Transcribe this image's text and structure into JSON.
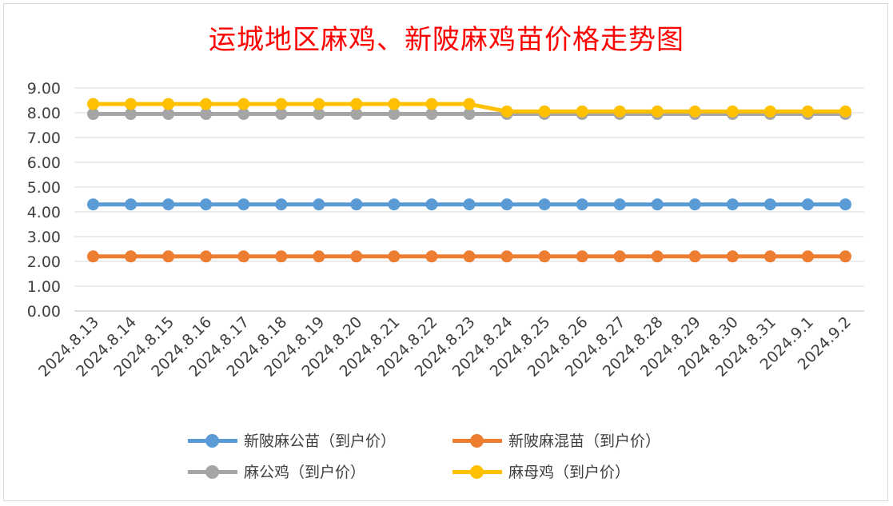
{
  "chart_data": {
    "type": "line",
    "title": "运城地区麻鸡、新陂麻鸡苗价格走势图",
    "categories": [
      "2024.8.13",
      "2024.8.14",
      "2024.8.15",
      "2024.8.16",
      "2024.8.17",
      "2024.8.18",
      "2024.8.19",
      "2024.8.20",
      "2024.8.21",
      "2024.8.22",
      "2024.8.23",
      "2024.8.24",
      "2024.8.25",
      "2024.8.26",
      "2024.8.27",
      "2024.8.28",
      "2024.8.29",
      "2024.8.30",
      "2024.8.31",
      "2024.9.1",
      "2024.9.2"
    ],
    "yticks": [
      "0.00",
      "1.00",
      "2.00",
      "3.00",
      "4.00",
      "5.00",
      "6.00",
      "7.00",
      "8.00",
      "9.00"
    ],
    "ylim": [
      0,
      9
    ],
    "grid": true,
    "legend_position": "bottom",
    "series": [
      {
        "name": "新陂麻公苗（到户价）",
        "color": "#5b9bd5",
        "values": [
          4.3,
          4.3,
          4.3,
          4.3,
          4.3,
          4.3,
          4.3,
          4.3,
          4.3,
          4.3,
          4.3,
          4.3,
          4.3,
          4.3,
          4.3,
          4.3,
          4.3,
          4.3,
          4.3,
          4.3,
          4.3
        ]
      },
      {
        "name": "新陂麻混苗（到户价）",
        "color": "#ed7d31",
        "values": [
          2.2,
          2.2,
          2.2,
          2.2,
          2.2,
          2.2,
          2.2,
          2.2,
          2.2,
          2.2,
          2.2,
          2.2,
          2.2,
          2.2,
          2.2,
          2.2,
          2.2,
          2.2,
          2.2,
          2.2,
          2.2
        ]
      },
      {
        "name": "麻公鸡（到户价）",
        "color": "#a5a5a5",
        "values": [
          7.95,
          7.95,
          7.95,
          7.95,
          7.95,
          7.95,
          7.95,
          7.95,
          7.95,
          7.95,
          7.95,
          7.95,
          7.95,
          7.95,
          7.95,
          7.95,
          7.95,
          7.95,
          7.95,
          7.95,
          7.95
        ]
      },
      {
        "name": "麻母鸡（到户价）",
        "color": "#ffc000",
        "values": [
          8.35,
          8.35,
          8.35,
          8.35,
          8.35,
          8.35,
          8.35,
          8.35,
          8.35,
          8.35,
          8.35,
          8.05,
          8.05,
          8.05,
          8.05,
          8.05,
          8.05,
          8.05,
          8.05,
          8.05,
          8.05
        ]
      }
    ]
  }
}
